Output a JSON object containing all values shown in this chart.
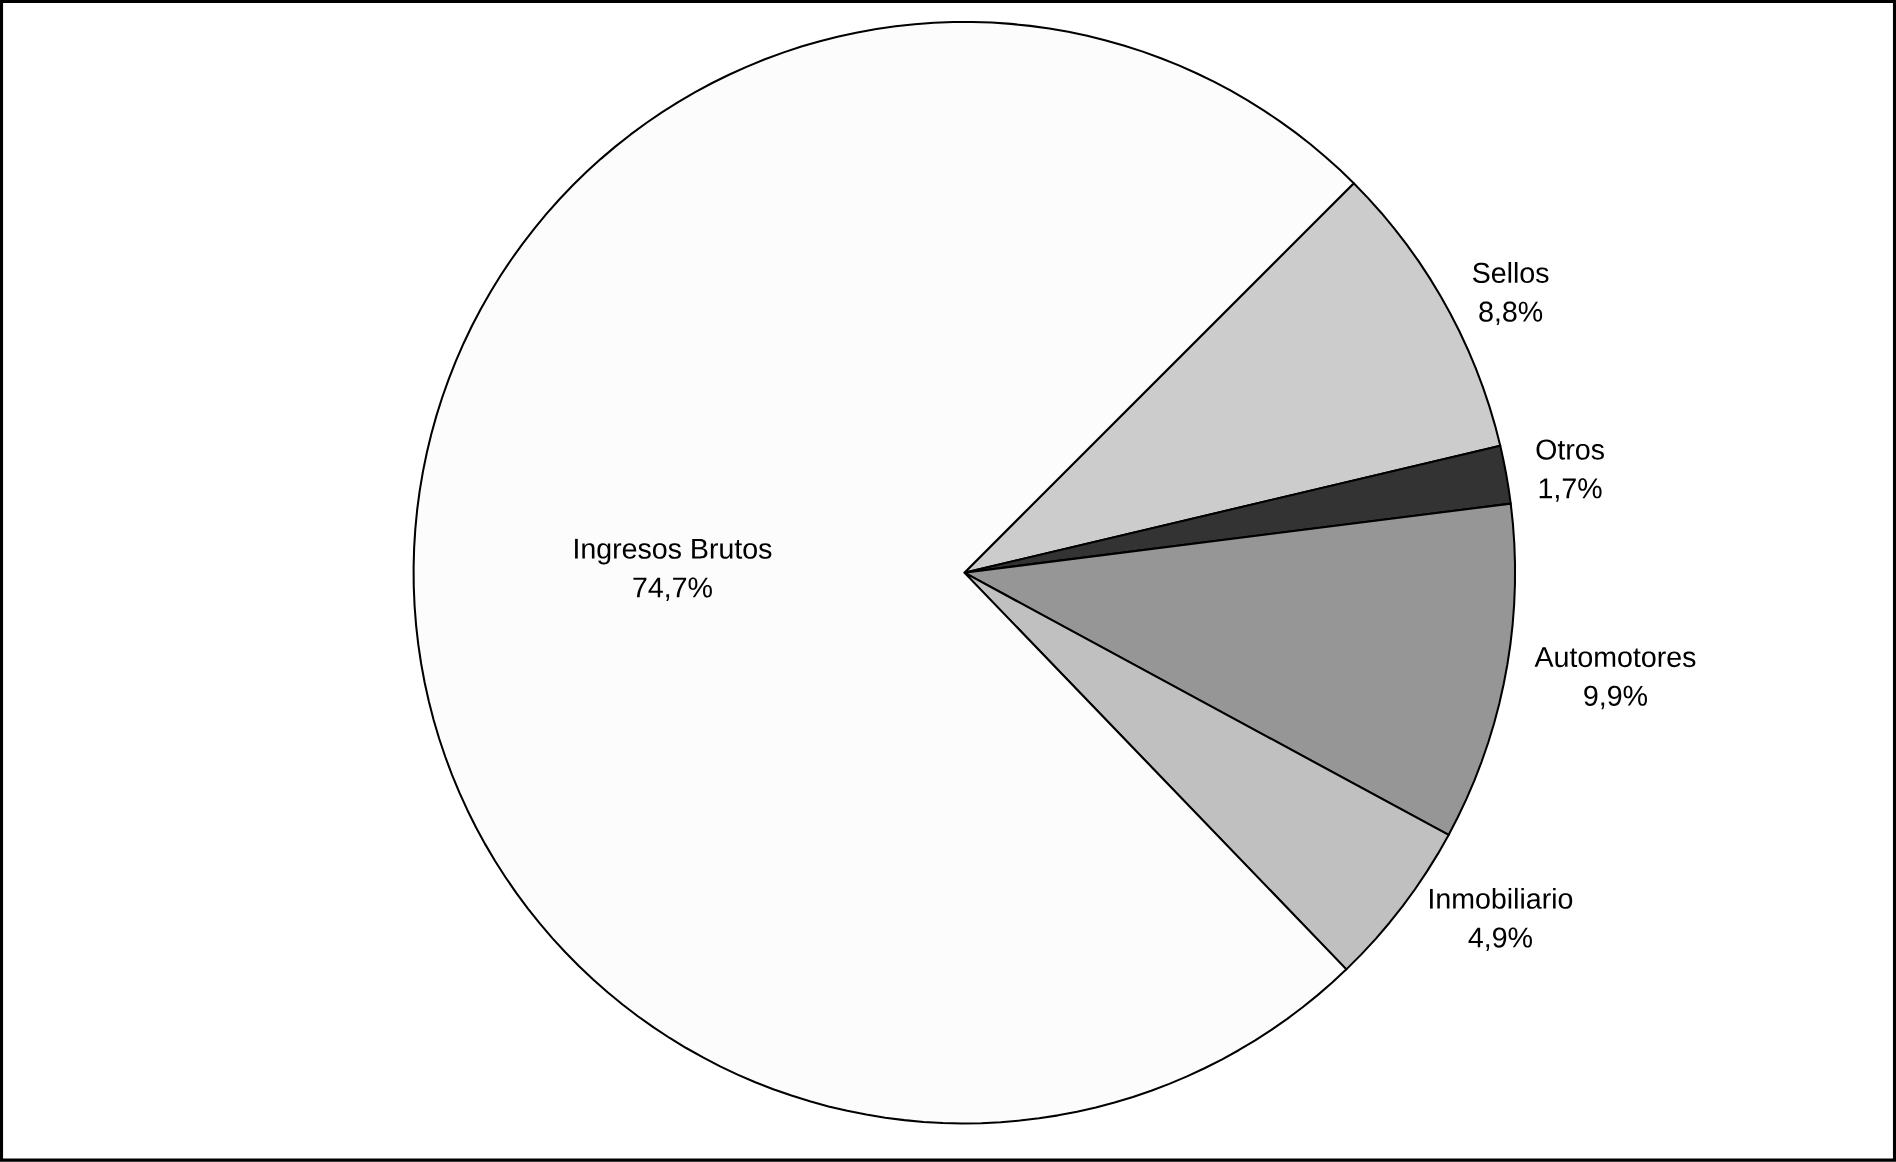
{
  "chart_data": {
    "type": "pie",
    "categories": [
      "Sellos",
      "Otros",
      "Automotores",
      "Inmobiliario",
      "Ingresos Brutos"
    ],
    "values": [
      8.8,
      1.7,
      9.9,
      4.9,
      74.7
    ],
    "colors": [
      "#cccccc",
      "#333333",
      "#969696",
      "#c0c0c0",
      "#fcfcfc"
    ],
    "value_labels": [
      "8,8%",
      "1,7%",
      "9,9%",
      "4,9%",
      "74,7%"
    ]
  }
}
